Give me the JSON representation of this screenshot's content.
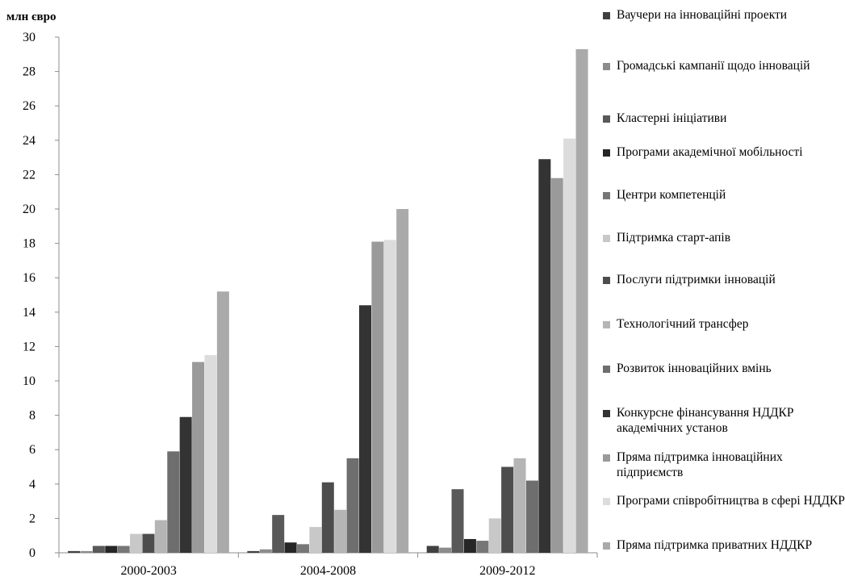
{
  "chart_data": {
    "type": "bar",
    "ylabel": "млн євро",
    "ylim": [
      0,
      30
    ],
    "yticks": [
      0,
      2,
      4,
      6,
      8,
      10,
      12,
      14,
      16,
      18,
      20,
      22,
      24,
      26,
      28,
      30
    ],
    "grid": false,
    "legend_position": "right",
    "categories": [
      "2000-2003",
      "2004-2008",
      "2009-2012"
    ],
    "series": [
      {
        "name": "Ваучери на інноваційні проекти",
        "color": "#404040",
        "values": [
          0.1,
          0.1,
          0.4
        ]
      },
      {
        "name": "Громадські кампанії щодо інновацій",
        "color": "#8c8c8c",
        "values": [
          0.1,
          0.2,
          0.3
        ]
      },
      {
        "name": "Кластерні ініціативи",
        "color": "#595959",
        "values": [
          0.4,
          2.2,
          3.7
        ]
      },
      {
        "name": "Програми академічної мобільності",
        "color": "#262626",
        "values": [
          0.4,
          0.6,
          0.8
        ]
      },
      {
        "name": "Центри компетенцій",
        "color": "#777777",
        "values": [
          0.4,
          0.5,
          0.7
        ]
      },
      {
        "name": "Підтримка старт-апів",
        "color": "#c8c8c8",
        "values": [
          1.1,
          1.5,
          2.0
        ]
      },
      {
        "name": "Послуги підтримки інновацій",
        "color": "#4d4d4d",
        "values": [
          1.1,
          4.1,
          5.0
        ]
      },
      {
        "name": "Технологічний трансфер",
        "color": "#b5b5b5",
        "values": [
          1.9,
          2.5,
          5.5
        ]
      },
      {
        "name": "Розвиток інноваційних вмінь",
        "color": "#6e6e6e",
        "values": [
          5.9,
          5.5,
          4.2
        ]
      },
      {
        "name": "Конкурсне фінансування НДДКР академічних установ",
        "color": "#333333",
        "values": [
          7.9,
          14.4,
          22.9
        ]
      },
      {
        "name": "Пряма підтримка інноваційних підприємств",
        "color": "#9a9a9a",
        "values": [
          11.1,
          18.1,
          21.8
        ]
      },
      {
        "name": "Програми співробітництва в сфері НДДКР",
        "color": "#dcdcdc",
        "values": [
          11.5,
          18.2,
          24.1
        ]
      },
      {
        "name": "Пряма підтримка приватних НДДКР",
        "color": "#aaaaaa",
        "values": [
          15.2,
          20.0,
          29.3
        ]
      }
    ]
  }
}
